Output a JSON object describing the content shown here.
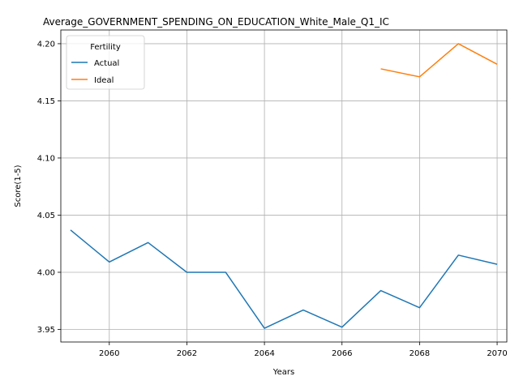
{
  "chart_data": {
    "type": "line",
    "title": "Average_GOVERNMENT_SPENDING_ON_EDUCATION_White_Male_Q1_IC",
    "xlabel": "Years",
    "ylabel": "Score(1-5)",
    "xlim": [
      2058.75,
      2070.25
    ],
    "ylim": [
      3.939,
      4.212
    ],
    "xticks": [
      2060,
      2062,
      2064,
      2066,
      2068,
      2070
    ],
    "yticks": [
      3.95,
      4.0,
      4.05,
      4.1,
      4.15,
      4.2
    ],
    "ytick_labels": [
      "3.95",
      "4.00",
      "4.05",
      "4.10",
      "4.15",
      "4.20"
    ],
    "grid": true,
    "legend": {
      "title": "Fertility",
      "placement": "top-left"
    },
    "series": [
      {
        "name": "Actual",
        "color": "#1f77b4",
        "x": [
          2059,
          2060,
          2061,
          2062,
          2063,
          2064,
          2065,
          2066,
          2067,
          2068,
          2069,
          2070
        ],
        "values": [
          4.037,
          4.009,
          4.026,
          4.0,
          4.0,
          3.951,
          3.967,
          3.952,
          3.984,
          3.969,
          4.015,
          4.007
        ]
      },
      {
        "name": "Ideal",
        "color": "#ff7f0e",
        "x": [
          2067,
          2068,
          2069,
          2070
        ],
        "values": [
          4.178,
          4.171,
          4.2,
          4.182
        ]
      }
    ]
  }
}
